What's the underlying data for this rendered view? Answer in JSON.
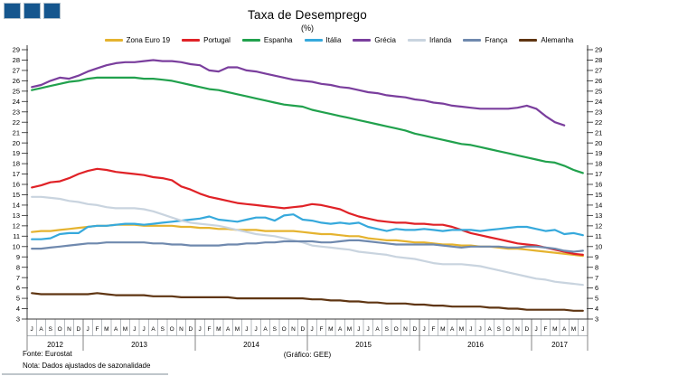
{
  "logo": {
    "color": "#15568E",
    "square_count": 3
  },
  "header": {
    "title": "Taxa de Desemprego",
    "subtitle": "(%)"
  },
  "footer": {
    "source": "Fonte: Eurostat",
    "note": "Nota: Dados ajustados de sazonalidade",
    "credit": "(Gráfico: GEE)"
  },
  "chart_data": {
    "type": "line",
    "title": "Taxa de Desemprego",
    "subtitle": "(%)",
    "ylim": [
      3,
      29
    ],
    "y_tick_step": 1,
    "grid": false,
    "legend_position": "top",
    "axis_color": "#3a3a3a",
    "cell_color": "#9aa0a6",
    "x_axis": {
      "unit": "month",
      "years": [
        {
          "label": "2012",
          "months": [
            "J",
            "A",
            "S",
            "O",
            "N",
            "D"
          ]
        },
        {
          "label": "2013",
          "months": [
            "J",
            "F",
            "M",
            "A",
            "M",
            "J",
            "J",
            "A",
            "S",
            "O",
            "N",
            "D"
          ]
        },
        {
          "label": "2014",
          "months": [
            "J",
            "F",
            "M",
            "A",
            "M",
            "J",
            "J",
            "A",
            "S",
            "O",
            "N",
            "D"
          ]
        },
        {
          "label": "2015",
          "months": [
            "J",
            "F",
            "M",
            "A",
            "M",
            "J",
            "J",
            "A",
            "S",
            "O",
            "N",
            "D"
          ]
        },
        {
          "label": "2016",
          "months": [
            "J",
            "F",
            "M",
            "A",
            "M",
            "J",
            "J",
            "A",
            "S",
            "O",
            "N",
            "D"
          ]
        },
        {
          "label": "2017",
          "months": [
            "J",
            "F",
            "M",
            "A",
            "M",
            "J"
          ]
        }
      ]
    },
    "series": [
      {
        "name": "Zona Euro 19",
        "color": "#E5B32F",
        "values": [
          11.4,
          11.5,
          11.5,
          11.6,
          11.7,
          11.8,
          11.9,
          12.0,
          12.0,
          12.1,
          12.1,
          12.1,
          12.0,
          12.0,
          12.0,
          12.0,
          11.9,
          11.9,
          11.8,
          11.8,
          11.7,
          11.7,
          11.6,
          11.6,
          11.6,
          11.5,
          11.5,
          11.5,
          11.5,
          11.4,
          11.3,
          11.2,
          11.2,
          11.1,
          11.0,
          11.0,
          10.8,
          10.7,
          10.6,
          10.6,
          10.5,
          10.4,
          10.4,
          10.3,
          10.2,
          10.2,
          10.1,
          10.1,
          10.0,
          10.0,
          9.9,
          9.8,
          9.8,
          9.7,
          9.6,
          9.5,
          9.4,
          9.3,
          9.2,
          9.1
        ]
      },
      {
        "name": "Portugal",
        "color": "#E02227",
        "values": [
          15.7,
          15.9,
          16.2,
          16.3,
          16.6,
          17.0,
          17.3,
          17.5,
          17.4,
          17.2,
          17.1,
          17.0,
          16.9,
          16.7,
          16.6,
          16.4,
          15.8,
          15.5,
          15.1,
          14.8,
          14.6,
          14.4,
          14.2,
          14.1,
          14.0,
          13.9,
          13.8,
          13.7,
          13.8,
          13.9,
          14.1,
          14.0,
          13.8,
          13.6,
          13.2,
          12.9,
          12.7,
          12.5,
          12.4,
          12.3,
          12.3,
          12.2,
          12.2,
          12.1,
          12.1,
          11.9,
          11.6,
          11.3,
          11.1,
          10.9,
          10.7,
          10.5,
          10.3,
          10.2,
          10.1,
          9.9,
          9.7,
          9.5,
          9.3,
          9.2
        ]
      },
      {
        "name": "Espanha",
        "color": "#21A14D",
        "values": [
          25.1,
          25.3,
          25.5,
          25.7,
          25.9,
          26.0,
          26.2,
          26.3,
          26.3,
          26.3,
          26.3,
          26.3,
          26.2,
          26.2,
          26.1,
          26.0,
          25.8,
          25.6,
          25.4,
          25.2,
          25.1,
          24.9,
          24.7,
          24.5,
          24.3,
          24.1,
          23.9,
          23.7,
          23.6,
          23.5,
          23.2,
          23.0,
          22.8,
          22.6,
          22.4,
          22.2,
          22.0,
          21.8,
          21.6,
          21.4,
          21.2,
          20.9,
          20.7,
          20.5,
          20.3,
          20.1,
          19.9,
          19.8,
          19.6,
          19.4,
          19.2,
          19.0,
          18.8,
          18.6,
          18.4,
          18.2,
          18.1,
          17.8,
          17.4,
          17.1
        ]
      },
      {
        "name": "Itália",
        "color": "#36A9DC",
        "values": [
          10.7,
          10.7,
          10.8,
          11.2,
          11.3,
          11.3,
          11.9,
          12.0,
          12.0,
          12.1,
          12.2,
          12.2,
          12.1,
          12.2,
          12.3,
          12.4,
          12.5,
          12.6,
          12.7,
          12.9,
          12.6,
          12.5,
          12.4,
          12.6,
          12.8,
          12.8,
          12.5,
          13.0,
          13.1,
          12.6,
          12.5,
          12.3,
          12.2,
          12.3,
          12.2,
          12.3,
          11.9,
          11.7,
          11.5,
          11.7,
          11.6,
          11.6,
          11.7,
          11.6,
          11.5,
          11.6,
          11.6,
          11.6,
          11.5,
          11.6,
          11.7,
          11.8,
          11.9,
          11.9,
          11.7,
          11.5,
          11.6,
          11.2,
          11.3,
          11.1
        ]
      },
      {
        "name": "Grécia",
        "color": "#7A3E9D",
        "values": [
          25.4,
          25.6,
          26.0,
          26.3,
          26.2,
          26.5,
          26.9,
          27.2,
          27.5,
          27.7,
          27.8,
          27.8,
          27.9,
          28.0,
          27.9,
          27.9,
          27.8,
          27.6,
          27.5,
          27.0,
          26.9,
          27.3,
          27.3,
          27.0,
          26.9,
          26.7,
          26.5,
          26.3,
          26.1,
          26.0,
          25.9,
          25.7,
          25.6,
          25.4,
          25.3,
          25.1,
          24.9,
          24.8,
          24.6,
          24.5,
          24.4,
          24.2,
          24.1,
          23.9,
          23.8,
          23.6,
          23.5,
          23.4,
          23.3,
          23.3,
          23.3,
          23.3,
          23.4,
          23.6,
          23.3,
          22.6,
          22.0,
          21.7,
          null,
          null
        ]
      },
      {
        "name": "Irlanda",
        "color": "#C9D4DF",
        "values": [
          14.8,
          14.8,
          14.7,
          14.6,
          14.4,
          14.3,
          14.1,
          14.0,
          13.8,
          13.7,
          13.7,
          13.7,
          13.6,
          13.4,
          13.1,
          12.8,
          12.5,
          12.3,
          12.2,
          12.1,
          12.0,
          11.8,
          11.6,
          11.4,
          11.2,
          11.1,
          11.0,
          10.8,
          10.6,
          10.4,
          10.1,
          10.0,
          9.9,
          9.8,
          9.7,
          9.5,
          9.4,
          9.3,
          9.2,
          9.0,
          8.9,
          8.8,
          8.6,
          8.4,
          8.3,
          8.3,
          8.3,
          8.2,
          8.1,
          7.9,
          7.7,
          7.5,
          7.3,
          7.1,
          6.9,
          6.8,
          6.6,
          6.5,
          6.4,
          6.3
        ]
      },
      {
        "name": "França",
        "color": "#6F89AE",
        "values": [
          9.8,
          9.8,
          9.9,
          10.0,
          10.1,
          10.2,
          10.3,
          10.3,
          10.4,
          10.4,
          10.4,
          10.4,
          10.4,
          10.3,
          10.3,
          10.2,
          10.2,
          10.1,
          10.1,
          10.1,
          10.1,
          10.2,
          10.2,
          10.3,
          10.3,
          10.4,
          10.4,
          10.5,
          10.5,
          10.5,
          10.5,
          10.4,
          10.4,
          10.5,
          10.6,
          10.6,
          10.5,
          10.4,
          10.3,
          10.2,
          10.2,
          10.2,
          10.2,
          10.2,
          10.1,
          10.0,
          9.9,
          10.0,
          10.0,
          10.0,
          10.0,
          9.9,
          9.9,
          10.0,
          10.0,
          9.9,
          9.8,
          9.6,
          9.5,
          9.6
        ]
      },
      {
        "name": "Alemanha",
        "color": "#5F3512",
        "values": [
          5.5,
          5.4,
          5.4,
          5.4,
          5.4,
          5.4,
          5.4,
          5.5,
          5.4,
          5.3,
          5.3,
          5.3,
          5.3,
          5.2,
          5.2,
          5.2,
          5.1,
          5.1,
          5.1,
          5.1,
          5.1,
          5.1,
          5.0,
          5.0,
          5.0,
          5.0,
          5.0,
          5.0,
          5.0,
          5.0,
          4.9,
          4.9,
          4.8,
          4.8,
          4.7,
          4.7,
          4.6,
          4.6,
          4.5,
          4.5,
          4.5,
          4.4,
          4.4,
          4.3,
          4.3,
          4.2,
          4.2,
          4.2,
          4.2,
          4.1,
          4.1,
          4.0,
          4.0,
          3.9,
          3.9,
          3.9,
          3.9,
          3.9,
          3.8,
          3.8
        ]
      }
    ]
  }
}
